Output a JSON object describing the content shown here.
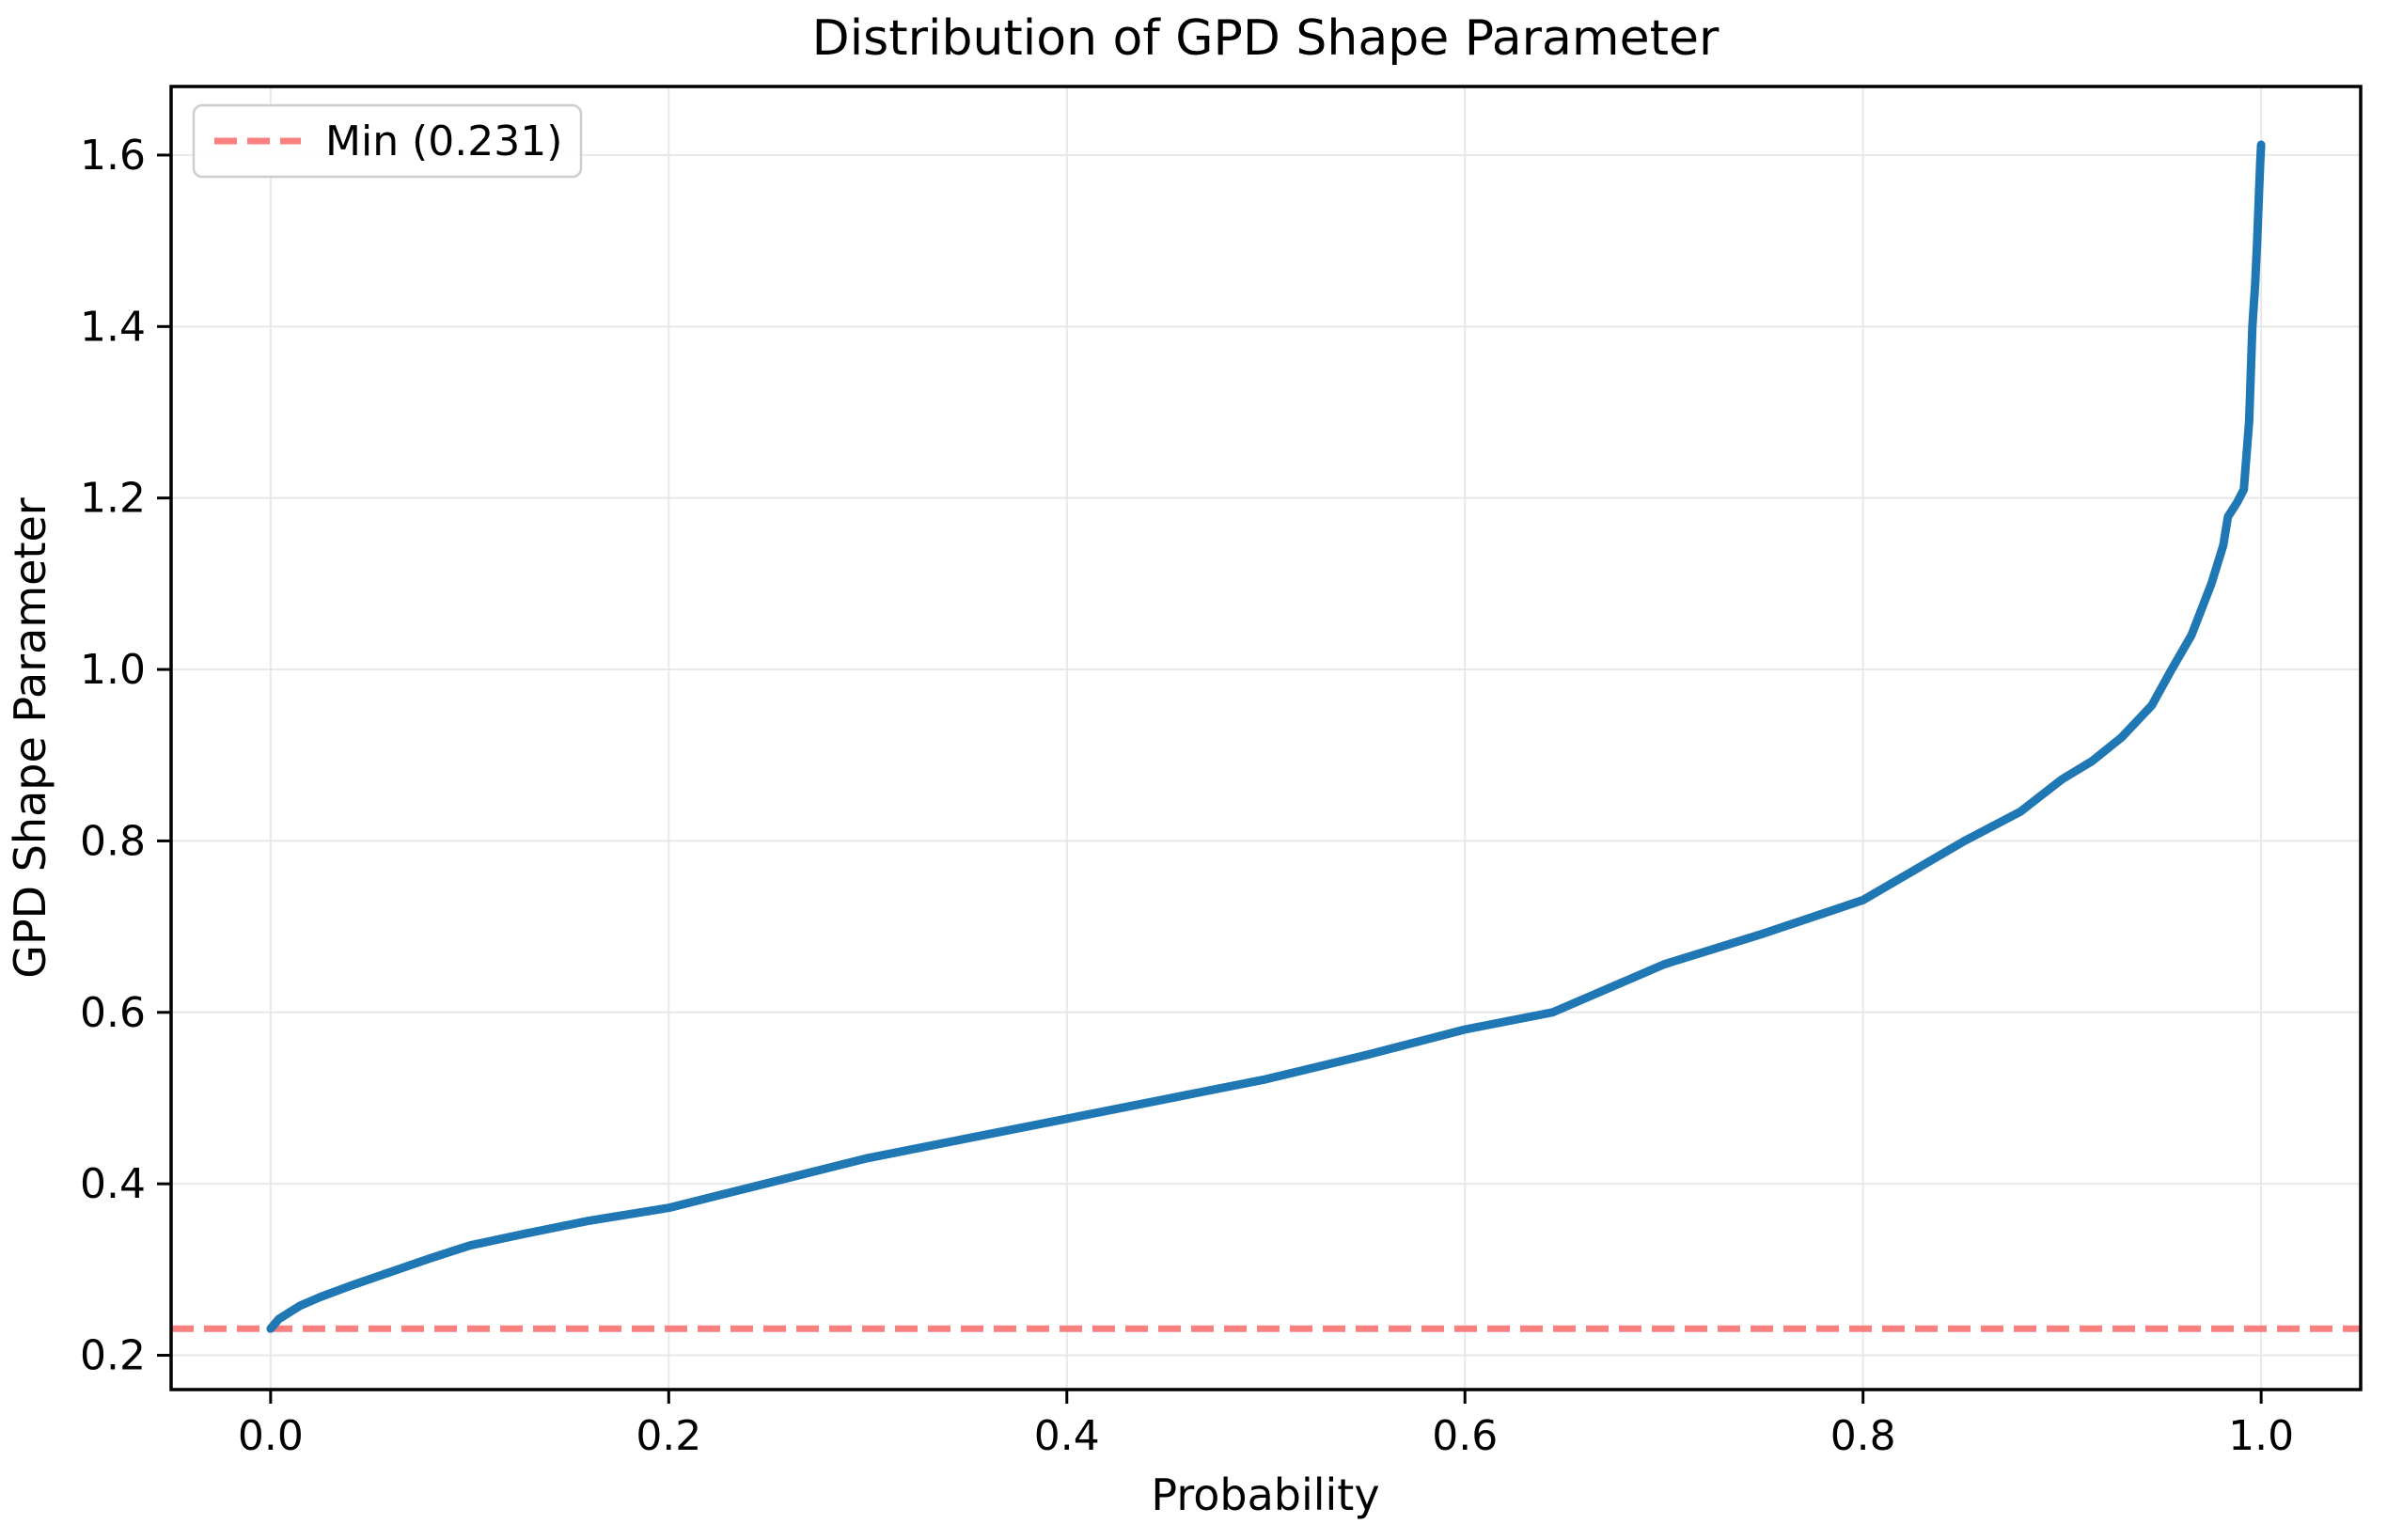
{
  "chart_data": {
    "type": "line",
    "title": "Distribution of GPD Shape Parameter",
    "xlabel": "Probability",
    "ylabel": "GPD Shape Parameter",
    "xlim": [
      -0.05,
      1.05
    ],
    "ylim": [
      0.16,
      1.68
    ],
    "x_ticks": [
      0.0,
      0.2,
      0.4,
      0.6,
      0.8,
      1.0
    ],
    "x_tick_labels": [
      "0.0",
      "0.2",
      "0.4",
      "0.6",
      "0.8",
      "1.0"
    ],
    "y_ticks": [
      0.2,
      0.4,
      0.6,
      0.8,
      1.0,
      1.2,
      1.4,
      1.6
    ],
    "y_tick_labels": [
      "0.2",
      "0.4",
      "0.6",
      "0.8",
      "1.0",
      "1.2",
      "1.4",
      "1.6"
    ],
    "grid": true,
    "grid_color": "#e8e8e8",
    "series": [
      {
        "name": "gpd_shape_quantile_curve",
        "type": "line",
        "color": "#1f77b4",
        "linewidth": 9,
        "x": [
          0.0,
          0.004,
          0.008,
          0.015,
          0.025,
          0.04,
          0.055,
          0.08,
          0.1,
          0.126,
          0.16,
          0.2,
          0.25,
          0.3,
          0.35,
          0.4,
          0.45,
          0.5,
          0.55,
          0.6,
          0.644,
          0.7,
          0.75,
          0.8,
          0.851,
          0.879,
          0.9,
          0.915,
          0.93,
          0.945,
          0.955,
          0.965,
          0.975,
          0.981,
          0.9833,
          0.988,
          0.9913,
          0.994,
          0.9956,
          0.997,
          0.998,
          0.999,
          0.9995,
          1.0
        ],
        "y": [
          0.231,
          0.242,
          0.248,
          0.258,
          0.268,
          0.281,
          0.293,
          0.313,
          0.328,
          0.341,
          0.357,
          0.372,
          0.401,
          0.43,
          0.453,
          0.476,
          0.499,
          0.522,
          0.55,
          0.58,
          0.6,
          0.656,
          0.692,
          0.731,
          0.8,
          0.834,
          0.872,
          0.893,
          0.921,
          0.958,
          1.0,
          1.04,
          1.1,
          1.145,
          1.178,
          1.195,
          1.21,
          1.29,
          1.4,
          1.45,
          1.5,
          1.56,
          1.59,
          1.612
        ]
      }
    ],
    "reference_lines": [
      {
        "name": "min_line",
        "orientation": "horizontal",
        "value": 0.231,
        "label": "Min (0.231)",
        "color": "#fa8080",
        "style": "dashed",
        "linewidth": 7
      }
    ],
    "legend": {
      "position": "upper left",
      "entries": [
        {
          "label": "Min (0.231)",
          "color": "#fa8080",
          "style": "dashed"
        }
      ]
    },
    "stats": {
      "min": 0.231,
      "max": 1.612
    }
  }
}
